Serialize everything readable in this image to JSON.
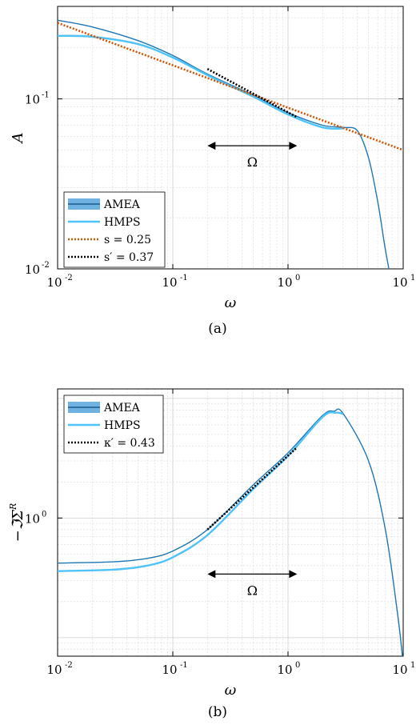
{
  "chart_data": [
    {
      "type": "line",
      "caption": "(a)",
      "xlabel": "ω",
      "ylabel": "A",
      "xscale": "log",
      "yscale": "log",
      "xlim": [
        0.01,
        10
      ],
      "ylim": [
        0.01,
        0.35
      ],
      "grid": true,
      "legend_position": "bottom-left",
      "x_tick_labels": [
        "10",
        "10",
        "10",
        "10"
      ],
      "x_tick_exponents": [
        "-2",
        "-1",
        "0",
        "1"
      ],
      "y_tick_labels": [
        "10",
        "10"
      ],
      "y_tick_exponents": [
        "-2",
        "-1"
      ],
      "annotation": {
        "text": "Ω",
        "arrow_from": 0.2,
        "arrow_to": 1.2,
        "y": 0.053
      },
      "series": [
        {
          "name": "AMEA",
          "style": "solid",
          "color": "#1f77b4",
          "x": [
            0.01,
            0.02,
            0.05,
            0.1,
            0.2,
            0.5,
            1,
            2,
            3,
            4,
            5,
            6,
            7,
            8
          ],
          "y": [
            0.29,
            0.265,
            0.22,
            0.18,
            0.14,
            0.105,
            0.083,
            0.07,
            0.068,
            0.065,
            0.045,
            0.025,
            0.013,
            0.008
          ]
        },
        {
          "name": "HMPS",
          "style": "solid",
          "color": "#4fc3f7",
          "x": [
            0.01,
            0.02,
            0.05,
            0.1,
            0.2,
            0.5,
            1,
            2,
            3
          ],
          "y": [
            0.235,
            0.232,
            0.21,
            0.175,
            0.138,
            0.103,
            0.081,
            0.068,
            0.067
          ]
        },
        {
          "name": "s = 0.25",
          "style": "dotted",
          "color": "#d35400",
          "x": [
            0.01,
            10
          ],
          "y": [
            0.28,
            0.05
          ]
        },
        {
          "name": "s′ = 0.37",
          "style": "dotted",
          "color": "#000000",
          "x": [
            0.2,
            1.2
          ],
          "y": [
            0.15,
            0.078
          ]
        }
      ]
    },
    {
      "type": "line",
      "caption": "(b)",
      "xlabel": "ω",
      "ylabel": "−ℑΣ",
      "ylabel_sup": "R",
      "xscale": "log",
      "yscale": "log",
      "xlim": [
        0.01,
        10
      ],
      "ylim": [
        0.07,
        12
      ],
      "grid": true,
      "legend_position": "top-left",
      "x_tick_labels": [
        "10",
        "10",
        "10",
        "10"
      ],
      "x_tick_exponents": [
        "-2",
        "-1",
        "0",
        "1"
      ],
      "y_tick_labels": [
        "10"
      ],
      "y_tick_exponents": [
        "0"
      ],
      "annotation": {
        "text": "Ω",
        "arrow_from": 0.2,
        "arrow_to": 1.2,
        "y": 0.34
      },
      "series": [
        {
          "name": "AMEA",
          "style": "solid",
          "color": "#1f77b4",
          "x": [
            0.01,
            0.03,
            0.06,
            0.1,
            0.2,
            0.5,
            1,
            2,
            2.5,
            3,
            5,
            7,
            9,
            10
          ],
          "y": [
            0.42,
            0.43,
            0.46,
            0.53,
            0.8,
            1.9,
            3.5,
            7.2,
            7.8,
            7.5,
            3.0,
            0.8,
            0.15,
            0.06
          ]
        },
        {
          "name": "HMPS",
          "style": "solid",
          "color": "#4fc3f7",
          "x": [
            0.01,
            0.03,
            0.06,
            0.1,
            0.2,
            0.5,
            1,
            2,
            2.6,
            3
          ],
          "y": [
            0.36,
            0.37,
            0.4,
            0.47,
            0.72,
            1.75,
            3.3,
            7.0,
            7.6,
            7.4
          ]
        },
        {
          "name": "κ′ = 0.43",
          "style": "dotted",
          "color": "#000000",
          "x": [
            0.2,
            1.2
          ],
          "y": [
            0.8,
            3.9
          ]
        }
      ]
    }
  ]
}
